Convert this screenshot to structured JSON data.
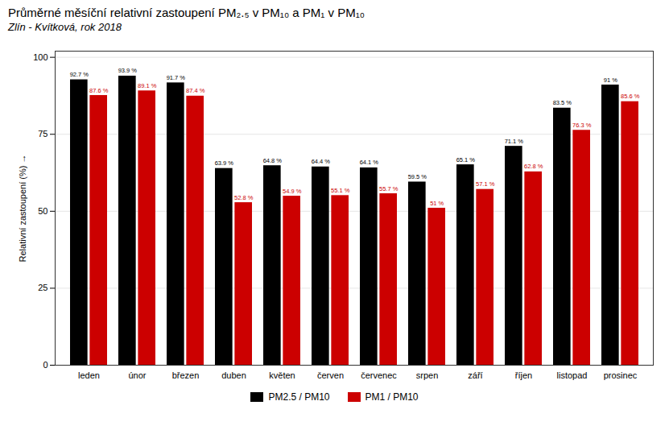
{
  "chart_data": {
    "type": "bar",
    "title": "Průměrné měsíční relativní zastoupení PM₂.₅ v PM₁₀ a PM₁ v PM₁₀",
    "subtitle": "Zlín - Kvítková, rok 2018",
    "ylabel": "Relativní zastoupení (%)",
    "categories": [
      "leden",
      "únor",
      "březen",
      "duben",
      "květen",
      "červen",
      "červenec",
      "srpen",
      "září",
      "říjen",
      "listopad",
      "prosinec"
    ],
    "series": [
      {
        "name": "PM2.5 / PM10",
        "color": "#000000",
        "values": [
          92.7,
          93.9,
          91.7,
          63.9,
          64.8,
          64.4,
          64.1,
          59.5,
          65.1,
          71.1,
          83.5,
          91.0
        ],
        "value_labels": [
          "92.7 %",
          "93.9 %",
          "91.7 %",
          "63.9 %",
          "64.8 %",
          "64.4 %",
          "64.1 %",
          "59.5 %",
          "65.1 %",
          "71.1 %",
          "83.5 %",
          "91 %"
        ]
      },
      {
        "name": "PM1 / PM10",
        "color": "#cc0000",
        "values": [
          87.6,
          89.1,
          87.4,
          52.8,
          54.9,
          55.1,
          55.7,
          51.0,
          57.1,
          62.8,
          76.3,
          85.6
        ],
        "value_labels": [
          "87.6 %",
          "89.1 %",
          "87.4 %",
          "52.8 %",
          "54.9 %",
          "55.1 %",
          "55.7 %",
          "51 %",
          "57.1 %",
          "62.8 %",
          "76.3 %",
          "85.6 %"
        ]
      }
    ],
    "ylim": [
      0,
      102
    ],
    "yticks": [
      0,
      25,
      50,
      75,
      100
    ],
    "grid": true,
    "data_labels": true,
    "legend": "bottom"
  }
}
